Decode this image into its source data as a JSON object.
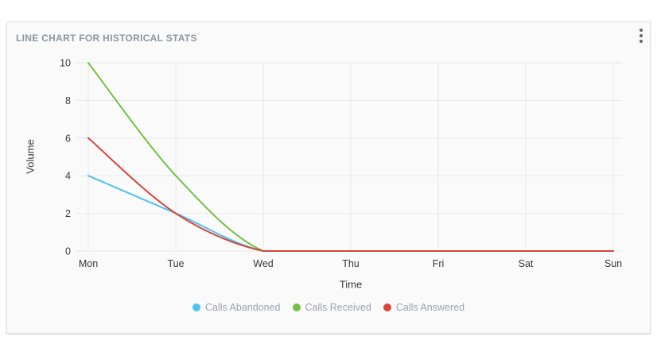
{
  "card": {
    "title": "LINE CHART FOR HISTORICAL STATS",
    "menu_icon": "kebab-vertical-dots"
  },
  "chart_data": {
    "type": "line",
    "categories": [
      "Mon",
      "Tue",
      "Wed",
      "Thu",
      "Fri",
      "Sat",
      "Sun"
    ],
    "series": [
      {
        "name": "Calls Abandoned",
        "color": "#4cc2f1",
        "values": [
          4,
          2,
          0,
          0,
          0,
          0,
          0
        ]
      },
      {
        "name": "Calls Received",
        "color": "#74c044",
        "values": [
          10,
          4,
          0,
          0,
          0,
          0,
          0
        ]
      },
      {
        "name": "Calls Answered",
        "color": "#d9453a",
        "values": [
          6,
          2,
          0,
          0,
          0,
          0,
          0
        ]
      }
    ],
    "xlabel": "Time",
    "ylabel": "Volume",
    "ylim": [
      0,
      10
    ],
    "yticks": [
      0,
      2,
      4,
      6,
      8,
      10
    ],
    "grid": true,
    "legend_position": "bottom"
  },
  "colors": {
    "page_bg": "#ffffff",
    "card_bg": "#fafafa",
    "card_border": "#e2e2e2",
    "title_text": "#8e959c",
    "grid_line": "#e7e7e7",
    "tick_text": "#383838",
    "axis_title_text": "#3a3a3a",
    "legend_text": "#9aa2af",
    "menu_icon": "#5d686f"
  }
}
